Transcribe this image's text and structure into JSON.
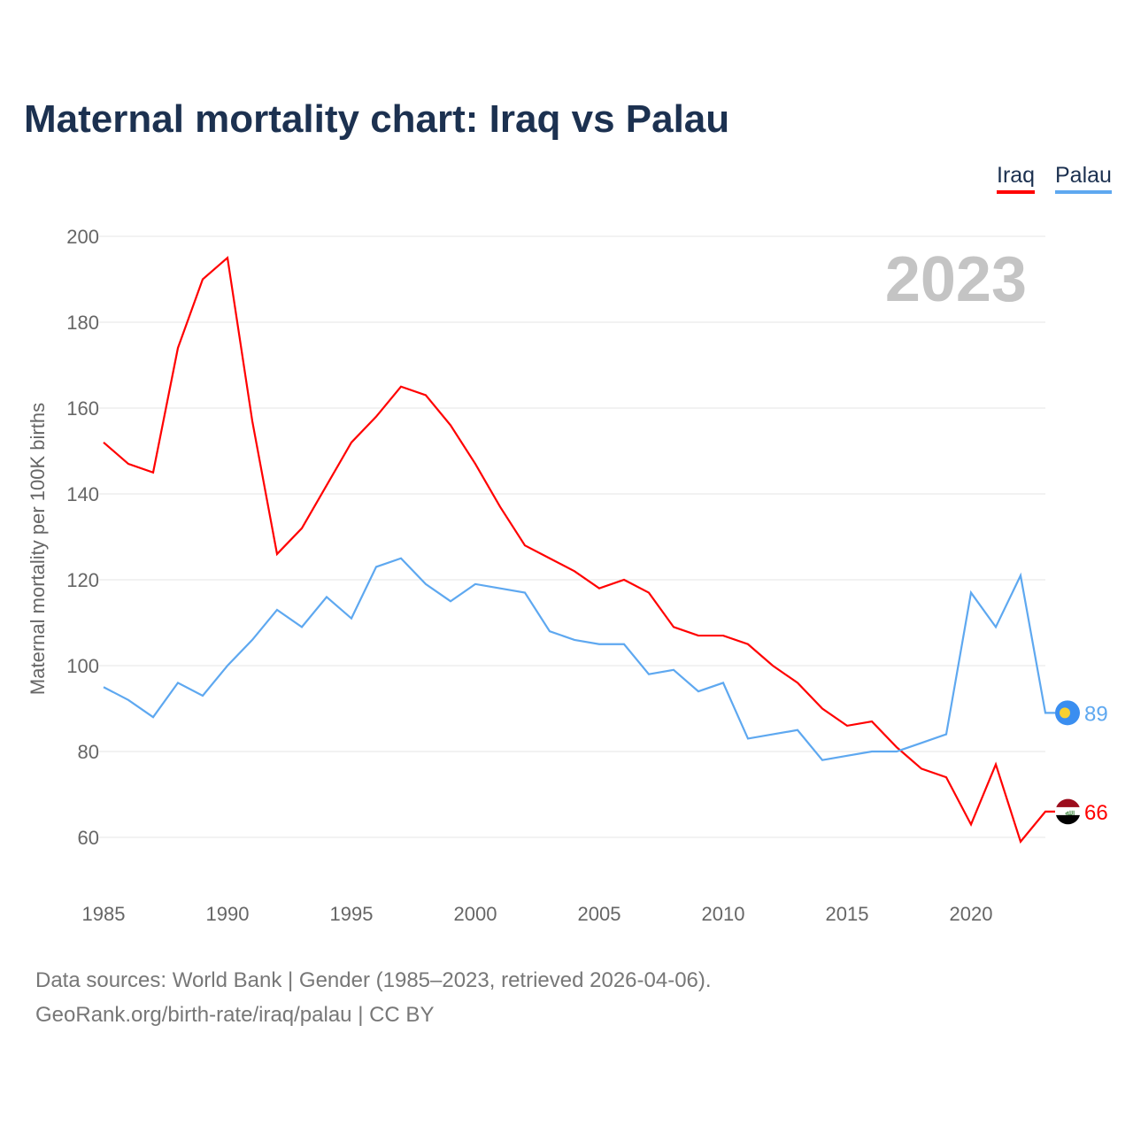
{
  "title": "Maternal mortality chart: Iraq vs Palau",
  "source_line1": "Data sources: World Bank | Gender (1985–2023, retrieved 2026-04-06).",
  "source_line2": "GeoRank.org/birth-rate/iraq/palau | CC BY",
  "chart_data": {
    "type": "line",
    "title": "Maternal mortality chart: Iraq vs Palau",
    "ylabel": "Maternal mortality per 100K births",
    "xlabel": "",
    "year_label": "2023",
    "ylim": [
      50,
      200
    ],
    "xlim": [
      1985,
      2023
    ],
    "yticks": [
      60,
      80,
      100,
      120,
      140,
      160,
      180,
      200
    ],
    "xticks": [
      1985,
      1990,
      1995,
      2000,
      2005,
      2010,
      2015,
      2020
    ],
    "legend_placement": "top-right",
    "x": [
      1985,
      1986,
      1987,
      1988,
      1989,
      1990,
      1991,
      1992,
      1993,
      1994,
      1995,
      1996,
      1997,
      1998,
      1999,
      2000,
      2001,
      2002,
      2003,
      2004,
      2005,
      2006,
      2007,
      2008,
      2009,
      2010,
      2011,
      2012,
      2013,
      2014,
      2015,
      2016,
      2017,
      2018,
      2019,
      2020,
      2021,
      2022,
      2023
    ],
    "series": [
      {
        "name": "Iraq",
        "color": "#ff0000",
        "end_label": "66",
        "values": [
          152,
          147,
          145,
          174,
          190,
          195,
          157,
          126,
          132,
          142,
          152,
          158,
          165,
          163,
          156,
          147,
          137,
          128,
          125,
          122,
          118,
          120,
          117,
          109,
          107,
          107,
          105,
          100,
          96,
          90,
          86,
          87,
          81,
          76,
          74,
          63,
          77,
          59,
          66
        ]
      },
      {
        "name": "Palau",
        "color": "#5ea8f0",
        "end_label": "89",
        "values": [
          95,
          92,
          88,
          96,
          93,
          100,
          106,
          113,
          109,
          116,
          111,
          123,
          125,
          119,
          115,
          119,
          118,
          117,
          108,
          106,
          105,
          105,
          98,
          99,
          94,
          96,
          83,
          84,
          85,
          78,
          79,
          80,
          80,
          82,
          84,
          117,
          109,
          121,
          89
        ]
      }
    ]
  }
}
